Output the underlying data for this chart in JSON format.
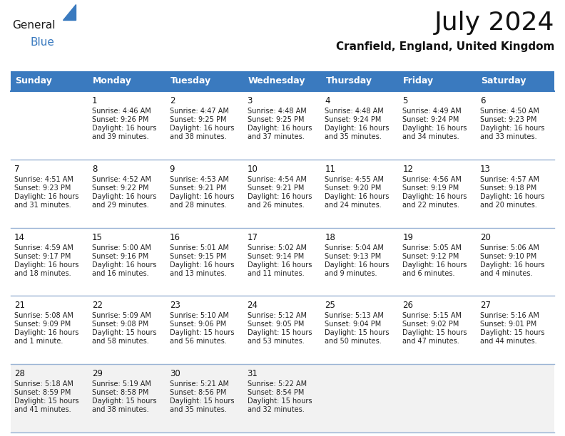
{
  "title": "July 2024",
  "subtitle": "Cranfield, England, United Kingdom",
  "header_color": "#3a7abf",
  "header_text_color": "#FFFFFF",
  "border_color": "#3a7abf",
  "row_line_color": "#9ab3d5",
  "last_row_bg": "#f0f0f0",
  "days_of_week": [
    "Sunday",
    "Monday",
    "Tuesday",
    "Wednesday",
    "Thursday",
    "Friday",
    "Saturday"
  ],
  "calendar_data": [
    [
      "",
      "1\nSunrise: 4:46 AM\nSunset: 9:26 PM\nDaylight: 16 hours\nand 39 minutes.",
      "2\nSunrise: 4:47 AM\nSunset: 9:25 PM\nDaylight: 16 hours\nand 38 minutes.",
      "3\nSunrise: 4:48 AM\nSunset: 9:25 PM\nDaylight: 16 hours\nand 37 minutes.",
      "4\nSunrise: 4:48 AM\nSunset: 9:24 PM\nDaylight: 16 hours\nand 35 minutes.",
      "5\nSunrise: 4:49 AM\nSunset: 9:24 PM\nDaylight: 16 hours\nand 34 minutes.",
      "6\nSunrise: 4:50 AM\nSunset: 9:23 PM\nDaylight: 16 hours\nand 33 minutes."
    ],
    [
      "7\nSunrise: 4:51 AM\nSunset: 9:23 PM\nDaylight: 16 hours\nand 31 minutes.",
      "8\nSunrise: 4:52 AM\nSunset: 9:22 PM\nDaylight: 16 hours\nand 29 minutes.",
      "9\nSunrise: 4:53 AM\nSunset: 9:21 PM\nDaylight: 16 hours\nand 28 minutes.",
      "10\nSunrise: 4:54 AM\nSunset: 9:21 PM\nDaylight: 16 hours\nand 26 minutes.",
      "11\nSunrise: 4:55 AM\nSunset: 9:20 PM\nDaylight: 16 hours\nand 24 minutes.",
      "12\nSunrise: 4:56 AM\nSunset: 9:19 PM\nDaylight: 16 hours\nand 22 minutes.",
      "13\nSunrise: 4:57 AM\nSunset: 9:18 PM\nDaylight: 16 hours\nand 20 minutes."
    ],
    [
      "14\nSunrise: 4:59 AM\nSunset: 9:17 PM\nDaylight: 16 hours\nand 18 minutes.",
      "15\nSunrise: 5:00 AM\nSunset: 9:16 PM\nDaylight: 16 hours\nand 16 minutes.",
      "16\nSunrise: 5:01 AM\nSunset: 9:15 PM\nDaylight: 16 hours\nand 13 minutes.",
      "17\nSunrise: 5:02 AM\nSunset: 9:14 PM\nDaylight: 16 hours\nand 11 minutes.",
      "18\nSunrise: 5:04 AM\nSunset: 9:13 PM\nDaylight: 16 hours\nand 9 minutes.",
      "19\nSunrise: 5:05 AM\nSunset: 9:12 PM\nDaylight: 16 hours\nand 6 minutes.",
      "20\nSunrise: 5:06 AM\nSunset: 9:10 PM\nDaylight: 16 hours\nand 4 minutes."
    ],
    [
      "21\nSunrise: 5:08 AM\nSunset: 9:09 PM\nDaylight: 16 hours\nand 1 minute.",
      "22\nSunrise: 5:09 AM\nSunset: 9:08 PM\nDaylight: 15 hours\nand 58 minutes.",
      "23\nSunrise: 5:10 AM\nSunset: 9:06 PM\nDaylight: 15 hours\nand 56 minutes.",
      "24\nSunrise: 5:12 AM\nSunset: 9:05 PM\nDaylight: 15 hours\nand 53 minutes.",
      "25\nSunrise: 5:13 AM\nSunset: 9:04 PM\nDaylight: 15 hours\nand 50 minutes.",
      "26\nSunrise: 5:15 AM\nSunset: 9:02 PM\nDaylight: 15 hours\nand 47 minutes.",
      "27\nSunrise: 5:16 AM\nSunset: 9:01 PM\nDaylight: 15 hours\nand 44 minutes."
    ],
    [
      "28\nSunrise: 5:18 AM\nSunset: 8:59 PM\nDaylight: 15 hours\nand 41 minutes.",
      "29\nSunrise: 5:19 AM\nSunset: 8:58 PM\nDaylight: 15 hours\nand 38 minutes.",
      "30\nSunrise: 5:21 AM\nSunset: 8:56 PM\nDaylight: 15 hours\nand 35 minutes.",
      "31\nSunrise: 5:22 AM\nSunset: 8:54 PM\nDaylight: 15 hours\nand 32 minutes.",
      "",
      "",
      ""
    ]
  ],
  "title_fontsize": 26,
  "subtitle_fontsize": 11,
  "header_fontsize": 9,
  "cell_day_fontsize": 8.5,
  "cell_text_fontsize": 7
}
